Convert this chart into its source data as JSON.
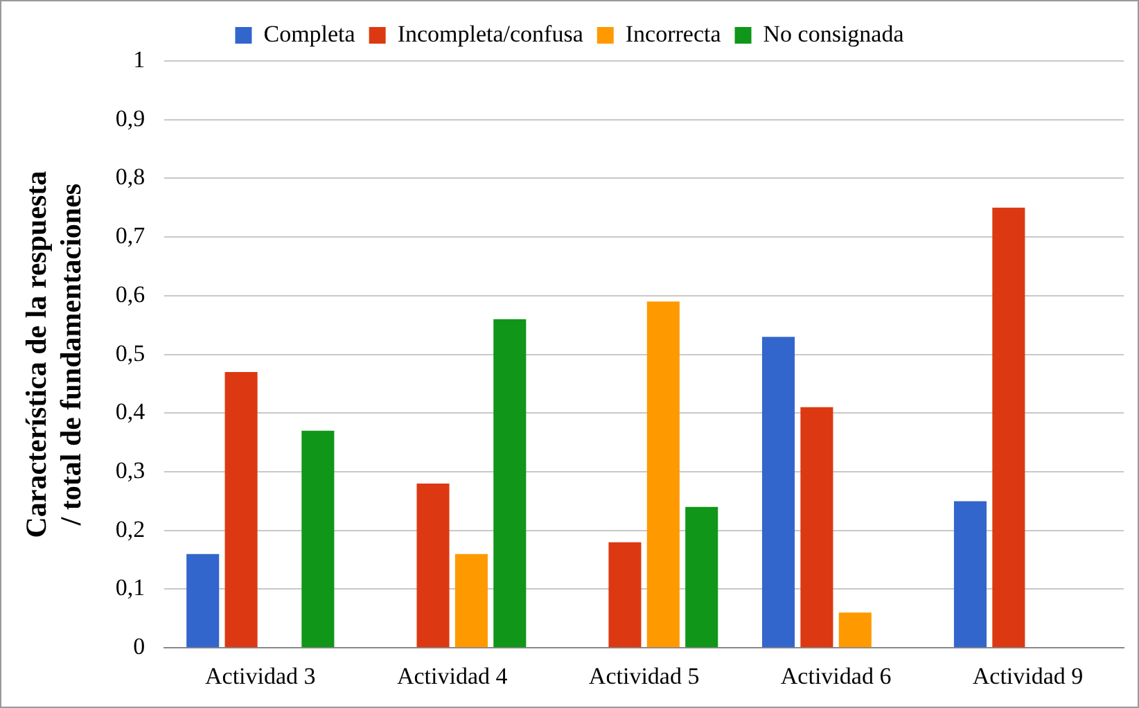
{
  "chart_data": {
    "type": "bar",
    "ylabel": "Característica de la respuesta / total de fundamentaciones",
    "categories": [
      "Actividad 3",
      "Actividad 4",
      "Actividad 5",
      "Actividad 6",
      "Actividad 9"
    ],
    "series": [
      {
        "name": "Completa",
        "color": "#3366cc",
        "values": [
          0.16,
          0,
          0,
          0.53,
          0.25
        ]
      },
      {
        "name": "Incompleta/confusa",
        "color": "#dc3912",
        "values": [
          0.47,
          0.28,
          0.18,
          0.41,
          0.75
        ]
      },
      {
        "name": "Incorrecta",
        "color": "#ff9900",
        "values": [
          0,
          0.16,
          0.59,
          0.06,
          0
        ]
      },
      {
        "name": "No consignada",
        "color": "#109618",
        "values": [
          0.37,
          0.56,
          0.24,
          0,
          0
        ]
      }
    ],
    "ylim": [
      0,
      1
    ],
    "yticks": [
      0,
      {
        "value": 0.1,
        "label": "0,1"
      },
      {
        "value": 0.2,
        "label": "0,2"
      },
      {
        "value": 0.3,
        "label": "0,3"
      },
      {
        "value": 0.4,
        "label": "0,4"
      },
      {
        "value": 0.5,
        "label": "0,5"
      },
      {
        "value": 0.6,
        "label": "0,6"
      },
      {
        "value": 0.7,
        "label": "0,7"
      },
      {
        "value": 0.8,
        "label": "0,8"
      },
      {
        "value": 0.9,
        "label": "0,9"
      },
      1
    ],
    "grid": "y",
    "legend": "top"
  }
}
